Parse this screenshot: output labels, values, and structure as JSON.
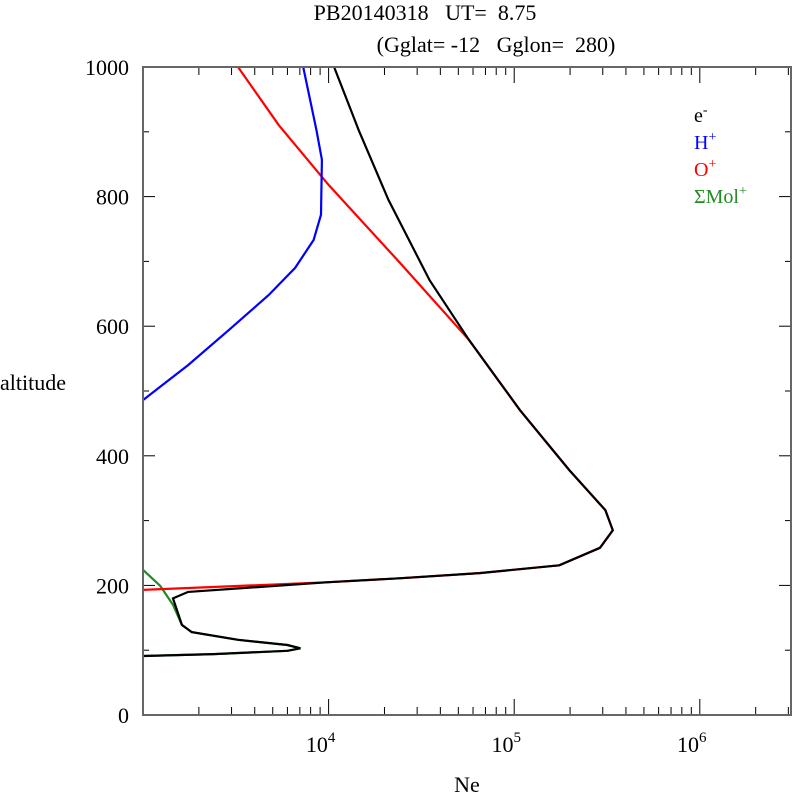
{
  "chart_data": {
    "type": "line",
    "title_line1": "PB20140318   UT=  8.75",
    "title_line2": "(Gglat= -12   Gglon=  280)",
    "xlabel": "Ne",
    "ylabel": "altitude",
    "xscale": "log",
    "xlim": [
      1000,
      3100000
    ],
    "ylim": [
      0,
      1000
    ],
    "x_ticks": [
      {
        "value": 10000,
        "base": "10",
        "exp": "4"
      },
      {
        "value": 100000,
        "base": "10",
        "exp": "5"
      },
      {
        "value": 1000000,
        "base": "10",
        "exp": "6"
      }
    ],
    "y_ticks": [
      0,
      200,
      400,
      600,
      800,
      1000
    ],
    "y_tick_labels": [
      "0",
      "200",
      "400",
      "600",
      "800",
      "1000"
    ],
    "legend_placement": "top-right",
    "series": [
      {
        "name": "e",
        "sup": "-",
        "color": "#000000",
        "points": [
          [
            10700,
            1000
          ],
          [
            14500,
            903
          ],
          [
            21000,
            795
          ],
          [
            35000,
            671
          ],
          [
            57000,
            579
          ],
          [
            107000,
            471
          ],
          [
            198000,
            378
          ],
          [
            310000,
            316
          ],
          [
            340000,
            285
          ],
          [
            290000,
            258
          ],
          [
            175000,
            231
          ],
          [
            65000,
            219
          ],
          [
            24000,
            211
          ],
          [
            10000,
            205
          ],
          [
            1750,
            190
          ],
          [
            1450,
            180
          ],
          [
            1620,
            139
          ],
          [
            1830,
            128
          ],
          [
            3250,
            116
          ],
          [
            6000,
            108
          ],
          [
            7050,
            103
          ],
          [
            6000,
            99
          ],
          [
            2400,
            94
          ],
          [
            1000,
            91
          ]
        ]
      },
      {
        "name": "H",
        "sup": "+",
        "color": "#0000ff",
        "points": [
          [
            7300,
            1000
          ],
          [
            8600,
            903
          ],
          [
            9200,
            857
          ],
          [
            9100,
            772
          ],
          [
            8300,
            733
          ],
          [
            6600,
            690
          ],
          [
            4750,
            648
          ],
          [
            2900,
            594
          ],
          [
            1750,
            540
          ],
          [
            1000,
            486
          ]
        ]
      },
      {
        "name": "O",
        "sup": "+",
        "color": "#ff0000",
        "points": [
          [
            3250,
            1000
          ],
          [
            5400,
            910
          ],
          [
            10000,
            818
          ],
          [
            24000,
            699
          ],
          [
            57000,
            579
          ],
          [
            107000,
            471
          ],
          [
            198000,
            378
          ],
          [
            310000,
            316
          ],
          [
            340000,
            285
          ],
          [
            290000,
            258
          ],
          [
            175000,
            231
          ],
          [
            65000,
            219
          ],
          [
            24000,
            211
          ],
          [
            10000,
            205
          ],
          [
            1000,
            193
          ]
        ]
      },
      {
        "name": "ΣMol",
        "sup": "+",
        "color": "#228b22",
        "points": [
          [
            1000,
            224
          ],
          [
            1240,
            199
          ],
          [
            1450,
            170
          ],
          [
            1620,
            139
          ],
          [
            1830,
            128
          ],
          [
            3250,
            116
          ],
          [
            6000,
            108
          ],
          [
            7050,
            103
          ],
          [
            6000,
            99
          ],
          [
            2400,
            94
          ],
          [
            1000,
            91
          ]
        ]
      }
    ]
  }
}
